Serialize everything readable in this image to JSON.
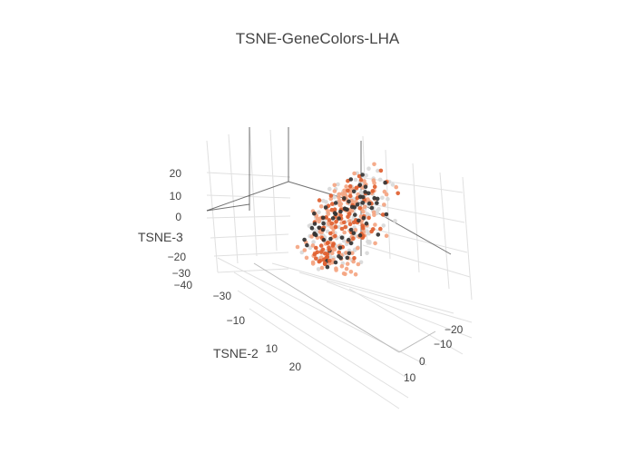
{
  "chart_data": {
    "type": "scatter",
    "dimensions": "3d",
    "title": "TSNE-GeneColors-LHA",
    "axes": {
      "x": {
        "label": "",
        "ticks": [
          "−20",
          "−10",
          "0",
          "10"
        ],
        "range": [
          -28,
          16
        ]
      },
      "y": {
        "label": "TSNE-2",
        "ticks": [
          "−30",
          "−10",
          "10",
          "20"
        ],
        "range": [
          -40,
          30
        ]
      },
      "z": {
        "label": "TSNE-3",
        "ticks": [
          "20",
          "10",
          "0",
          "−20",
          "−30",
          "−40"
        ],
        "range": [
          -45,
          28
        ]
      }
    },
    "colors": {
      "light": "#d9d9d9",
      "mid": "#f4a582",
      "high": "#e06030",
      "dark": "#333333",
      "grid": "#e0e0e0",
      "axis": "#444444"
    },
    "grid": true,
    "series": [
      {
        "values": [
          [
            -12.1,
            5.3,
            10.5
          ],
          [
            -11.4,
            7.0,
            8.1
          ],
          [
            -9.7,
            2.1,
            12.4
          ],
          [
            -8.2,
            -1.7,
            9.3
          ],
          [
            -10.5,
            9.8,
            4.2
          ],
          [
            -6.4,
            4.4,
            13.1
          ],
          [
            -13.3,
            1.2,
            6.6
          ],
          [
            -7.8,
            11.5,
            1.8
          ],
          [
            -5.1,
            0.4,
            7.7
          ],
          [
            -9.9,
            -3.8,
            14.6
          ],
          [
            -14.5,
            6.1,
            0.9
          ],
          [
            -4.6,
            8.7,
            5.5
          ],
          [
            -11.9,
            -0.9,
            -2.4
          ],
          [
            -3.2,
            3.6,
            11.0
          ],
          [
            -8.8,
            12.9,
            -3.1
          ],
          [
            -6.9,
            -5.2,
            4.0
          ],
          [
            -15.1,
            3.3,
            9.8
          ],
          [
            -2.7,
            6.4,
            2.2
          ],
          [
            -10.2,
            14.1,
            7.3
          ],
          [
            -7.3,
            -2.6,
            -4.8
          ],
          [
            -12.8,
            10.6,
            12.0
          ],
          [
            -5.8,
            1.9,
            -1.3
          ],
          [
            -1.9,
            9.4,
            8.6
          ],
          [
            -9.1,
            4.8,
            -6.2
          ],
          [
            -13.9,
            -4.1,
            3.1
          ],
          [
            -4.1,
            13.3,
            10.2
          ],
          [
            -8.5,
            7.9,
            -8.4
          ],
          [
            -11.1,
            -6.4,
            10.9
          ],
          [
            -3.6,
            -1.1,
            13.8
          ],
          [
            -6.2,
            15.0,
            -2.0
          ],
          [
            -14.0,
            8.2,
            -5.5
          ],
          [
            -0.8,
            4.0,
            6.1
          ],
          [
            -7.0,
            9.9,
            14.4
          ],
          [
            -10.8,
            -7.8,
            -0.6
          ],
          [
            -5.4,
            11.2,
            -7.1
          ],
          [
            -12.5,
            2.7,
            -9.0
          ],
          [
            -2.3,
            7.1,
            -4.0
          ],
          [
            -9.4,
            16.2,
            3.7
          ],
          [
            -15.6,
            -1.9,
            -3.5
          ],
          [
            -4.9,
            -3.9,
            9.1
          ],
          [
            -11.7,
            12.3,
            -1.1
          ],
          [
            -6.7,
            6.6,
            16.0
          ],
          [
            -8.0,
            -8.9,
            6.8
          ],
          [
            -1.4,
            12.0,
            1.1
          ],
          [
            -13.2,
            14.6,
            5.1
          ],
          [
            -3.9,
            2.4,
            -8.7
          ],
          [
            -10.0,
            0.1,
            16.7
          ],
          [
            -5.9,
            17.3,
            8.9
          ],
          [
            -12.2,
            -9.3,
            1.6
          ],
          [
            -7.6,
            3.0,
            -11.2
          ]
        ]
      },
      {
        "values": [
          [
            -9.0,
            4.1,
            8.4
          ],
          [
            -7.1,
            8.6,
            11.7
          ],
          [
            -11.6,
            1.6,
            3.9
          ],
          [
            -5.6,
            5.7,
            6.4
          ],
          [
            -13.5,
            9.1,
            7.0
          ],
          [
            -8.3,
            -2.9,
            1.5
          ],
          [
            -4.4,
            10.4,
            13.5
          ],
          [
            -10.4,
            13.7,
            0.3
          ],
          [
            -6.0,
            -0.5,
            10.0
          ],
          [
            -12.9,
            5.8,
            -3.9
          ],
          [
            -2.9,
            2.9,
            4.5
          ],
          [
            -9.6,
            11.0,
            15.2
          ],
          [
            -7.7,
            -5.9,
            -2.9
          ],
          [
            -14.8,
            0.7,
            12.2
          ],
          [
            -3.4,
            14.3,
            2.9
          ],
          [
            -11.3,
            7.6,
            -7.0
          ],
          [
            -5.2,
            6.2,
            -5.6
          ],
          [
            -8.7,
            15.6,
            9.5
          ],
          [
            -1.6,
            -2.3,
            8.0
          ],
          [
            -12.0,
            -3.2,
            14.0
          ],
          [
            -6.5,
            9.2,
            -9.6
          ],
          [
            -10.7,
            3.9,
            17.4
          ],
          [
            -4.0,
            -6.6,
            3.4
          ],
          [
            -13.7,
            12.8,
            2.5
          ],
          [
            -7.4,
            1.3,
            12.9
          ],
          [
            -2.1,
            10.8,
            -2.6
          ],
          [
            -9.2,
            -7.3,
            7.4
          ],
          [
            -15.3,
            4.5,
            -1.7
          ],
          [
            -5.0,
            16.5,
            4.9
          ],
          [
            -11.8,
            9.5,
            10.6
          ],
          [
            -3.0,
            0.0,
            -6.6
          ],
          [
            -8.9,
            6.8,
            -12.5
          ],
          [
            -6.3,
            12.5,
            6.0
          ],
          [
            -10.1,
            -4.6,
            -5.1
          ],
          [
            -1.2,
            5.1,
            12.6
          ],
          [
            -12.7,
            15.9,
            -4.3
          ],
          [
            -4.7,
            -8.1,
            0.5
          ],
          [
            -7.9,
            18.0,
            1.2
          ],
          [
            -14.2,
            -5.6,
            7.9
          ],
          [
            -9.8,
            8.9,
            -10.3
          ],
          [
            -5.5,
            3.5,
            18.1
          ],
          [
            -11.0,
            13.0,
            13.3
          ],
          [
            -3.7,
            8.0,
            9.7
          ],
          [
            -8.1,
            -1.4,
            -7.6
          ],
          [
            -13.0,
            6.9,
            15.9
          ],
          [
            -6.8,
            14.9,
            -6.9
          ],
          [
            -2.5,
            -4.3,
            5.7
          ],
          [
            -10.9,
            17.1,
            11.4
          ],
          [
            -7.2,
            -9.6,
            10.3
          ],
          [
            -12.4,
            11.8,
            -8.0
          ]
        ]
      },
      {
        "values": [
          [
            -10.3,
            6.5,
            9.0
          ],
          [
            -8.6,
            3.2,
            5.3
          ],
          [
            -6.6,
            9.7,
            10.8
          ],
          [
            -12.6,
            8.1,
            13.6
          ],
          [
            -4.8,
            1.0,
            1.4
          ],
          [
            -9.3,
            13.1,
            6.2
          ],
          [
            -7.5,
            -1.8,
            15.5
          ],
          [
            -14.3,
            4.9,
            2.0
          ],
          [
            -3.3,
            7.5,
            7.1
          ],
          [
            -11.2,
            -2.5,
            0.1
          ],
          [
            -5.7,
            12.2,
            -1.6
          ],
          [
            -8.4,
            0.8,
            -4.4
          ],
          [
            -13.6,
            11.3,
            -0.3
          ],
          [
            -2.0,
            4.6,
            14.8
          ],
          [
            -9.5,
            15.3,
            -2.2
          ],
          [
            -6.1,
            -4.9,
            7.6
          ],
          [
            -11.5,
            2.2,
            16.3
          ],
          [
            -4.3,
            9.0,
            -7.9
          ],
          [
            -15.0,
            7.4,
            4.6
          ],
          [
            -7.7,
            16.8,
            12.8
          ],
          [
            -1.0,
            2.6,
            -1.0
          ],
          [
            -10.6,
            -6.0,
            11.5
          ],
          [
            -5.3,
            13.9,
            3.3
          ],
          [
            -12.3,
            1.7,
            -6.1
          ],
          [
            -8.8,
            10.1,
            17.9
          ],
          [
            -3.5,
            -3.0,
            -3.3
          ],
          [
            -9.0,
            18.6,
            5.8
          ],
          [
            -13.1,
            -7.0,
            5.2
          ]
        ]
      },
      {
        "values": [
          [
            -9.8,
            5.6,
            7.2
          ],
          [
            -7.0,
            2.8,
            11.9
          ],
          [
            -11.9,
            10.2,
            2.7
          ],
          [
            -5.8,
            7.8,
            4.1
          ],
          [
            -8.4,
            -1.3,
            13.0
          ],
          [
            -13.4,
            3.4,
            10.1
          ],
          [
            -4.2,
            11.7,
            8.2
          ],
          [
            -10.0,
            8.4,
            -4.6
          ],
          [
            -6.3,
            -4.0,
            0.8
          ],
          [
            -12.1,
            13.6,
            14.9
          ],
          [
            -2.6,
            5.3,
            -0.2
          ],
          [
            -8.9,
            16.0,
            -0.9
          ],
          [
            -14.6,
            -0.3,
            -2.0
          ],
          [
            -5.1,
            -6.8,
            12.3
          ],
          [
            -9.9,
            11.4,
            -8.9
          ],
          [
            -3.8,
            15.2,
            6.6
          ],
          [
            -11.4,
            -5.0,
            6.0
          ],
          [
            -7.3,
            0.5,
            -7.3
          ],
          [
            -13.8,
            9.7,
            16.6
          ],
          [
            -1.7,
            8.5,
            10.6
          ],
          [
            -6.6,
            13.2,
            15.7
          ],
          [
            -10.7,
            -8.2,
            3.6
          ]
        ]
      },
      {
        "values": [
          [
            5.6,
            -0.7,
            -15.7
          ],
          [
            6.5,
            -2.0,
            -14.1
          ],
          [
            4.4,
            1.7,
            -18.2
          ],
          [
            7.6,
            -0.6,
            -16.9
          ],
          [
            5.2,
            -3.3,
            -12.3
          ],
          [
            6.1,
            0.7,
            -20.6
          ],
          [
            8.2,
            -1.9,
            -15.5
          ],
          [
            4.7,
            -1.3,
            -13.8
          ],
          [
            7.1,
            1.2,
            -19.0
          ],
          [
            5.9,
            -3.5,
            -17.0
          ]
        ]
      }
    ]
  }
}
